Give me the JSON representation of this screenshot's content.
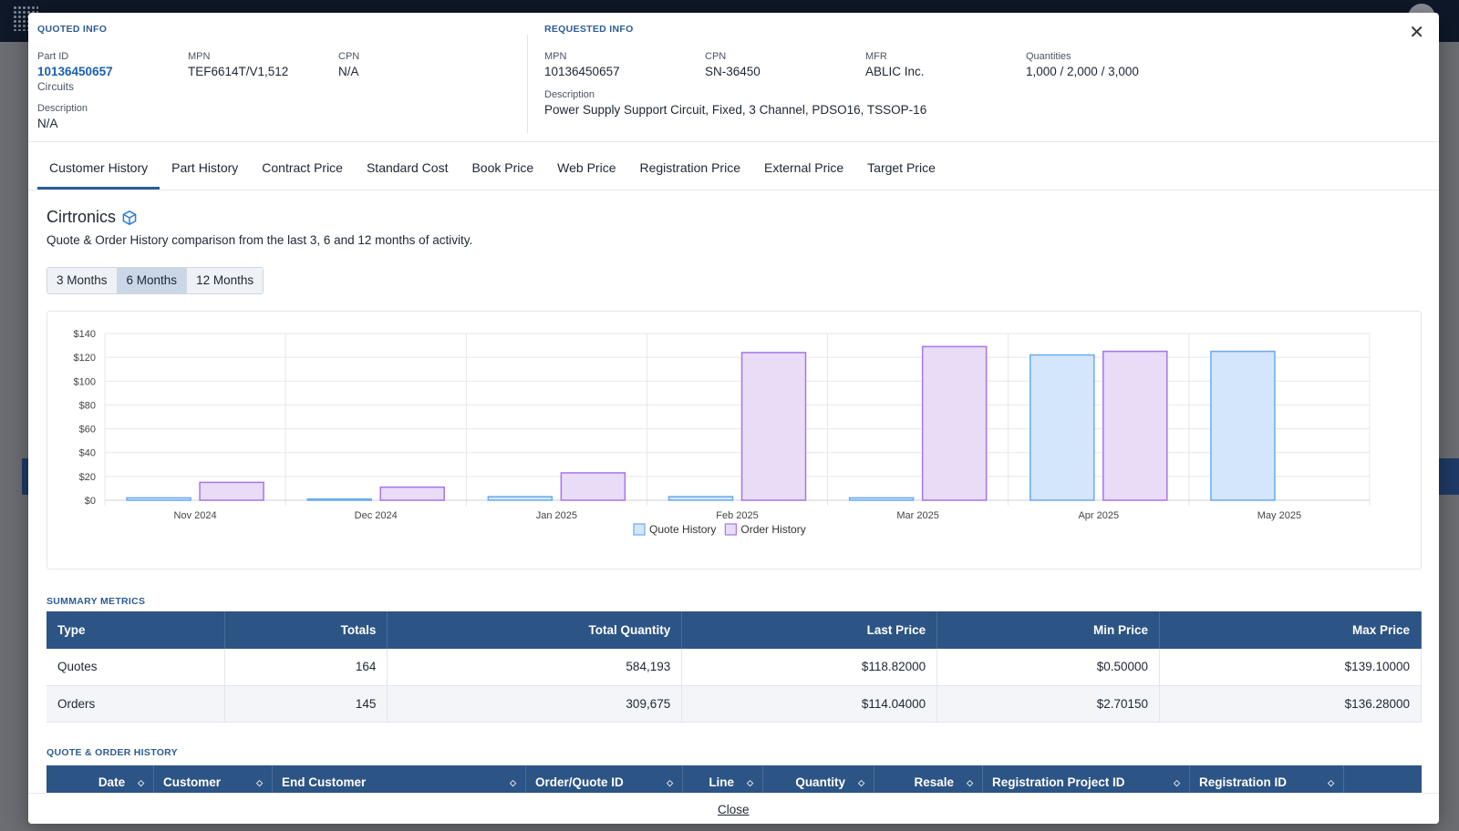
{
  "quoted": {
    "title": "QUOTED INFO",
    "part_id_label": "Part ID",
    "part_id": "10136450657",
    "part_category": "Circuits",
    "mpn_label": "MPN",
    "mpn": "TEF6614T/V1,512",
    "cpn_label": "CPN",
    "cpn": "N/A",
    "description_label": "Description",
    "description": "N/A"
  },
  "requested": {
    "title": "REQUESTED INFO",
    "mpn_label": "MPN",
    "mpn": "10136450657",
    "cpn_label": "CPN",
    "cpn": "SN-36450",
    "mfr_label": "MFR",
    "mfr": "ABLIC Inc.",
    "quantities_label": "Quantities",
    "quantities": "1,000 / 2,000 / 3,000",
    "description_label": "Description",
    "description": "Power Supply Support Circuit, Fixed, 3 Channel, PDSO16, TSSOP-16"
  },
  "close_icon": "close-icon",
  "tabs": [
    {
      "label": "Customer History",
      "active": true
    },
    {
      "label": "Part History"
    },
    {
      "label": "Contract Price"
    },
    {
      "label": "Standard Cost"
    },
    {
      "label": "Book Price"
    },
    {
      "label": "Web Price"
    },
    {
      "label": "Registration Price"
    },
    {
      "label": "External Price"
    },
    {
      "label": "Target Price"
    }
  ],
  "customer": {
    "name": "Cirtronics",
    "icon": "cube-icon",
    "subtitle": "Quote & Order History comparison from the last 3, 6 and 12 months of activity."
  },
  "periods": [
    {
      "label": "3 Months"
    },
    {
      "label": "6 Months",
      "active": true
    },
    {
      "label": "12 Months"
    }
  ],
  "chart_data": {
    "type": "bar",
    "categories": [
      "Nov 2024",
      "Dec 2024",
      "Jan 2025",
      "Feb 2025",
      "Mar 2025",
      "Apr 2025",
      "May 2025"
    ],
    "series": [
      {
        "name": "Quote History",
        "values": [
          2,
          1,
          3,
          3,
          2,
          122,
          125
        ],
        "fill": "#d3e6fb",
        "stroke": "#6aaaf0"
      },
      {
        "name": "Order History",
        "values": [
          15,
          11,
          23,
          124,
          129,
          125,
          null
        ],
        "fill": "#e8dcf7",
        "stroke": "#a874e8"
      }
    ],
    "ylim": [
      0,
      140
    ],
    "yticks": [
      "$0",
      "$20",
      "$40",
      "$60",
      "$80",
      "$100",
      "$120",
      "$140"
    ],
    "ytick_values": [
      0,
      20,
      40,
      60,
      80,
      100,
      120,
      140
    ],
    "grid": true,
    "legend": "bottom-center"
  },
  "summary": {
    "title": "SUMMARY METRICS",
    "headers": [
      "Type",
      "Totals",
      "Total Quantity",
      "Last Price",
      "Min Price",
      "Max Price"
    ],
    "rows": [
      [
        "Quotes",
        "164",
        "584,193",
        "$118.82000",
        "$0.50000",
        "$139.10000"
      ],
      [
        "Orders",
        "145",
        "309,675",
        "$114.04000",
        "$2.70150",
        "$136.28000"
      ]
    ]
  },
  "history": {
    "title": "QUOTE & ORDER HISTORY",
    "columns": [
      "Date",
      "Customer",
      "End Customer",
      "Order/Quote ID",
      "Line",
      "Quantity",
      "Resale",
      "Registration Project ID",
      "Registration ID"
    ]
  },
  "footer": {
    "close_label": "Close"
  }
}
